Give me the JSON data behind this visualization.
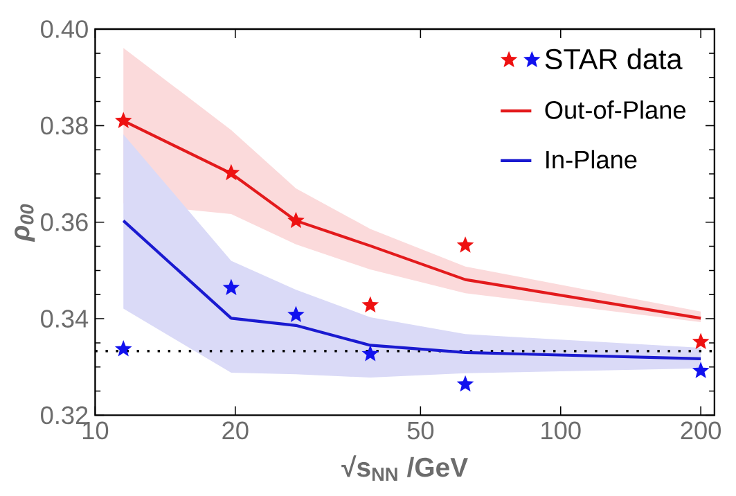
{
  "chart_data": {
    "type": "line",
    "xlabel": "√s$_{NN}$ /GeV",
    "ylabel": "ρ$_{00}$",
    "x": [
      11.5,
      19.6,
      27,
      39,
      62.4,
      200
    ],
    "series": [
      {
        "name": "STAR data",
        "type": "scatter",
        "marker": "star",
        "color": "#1111ee",
        "values": [
          0.3337,
          0.3464,
          0.3408,
          0.3327,
          0.3264,
          0.3292
        ]
      },
      {
        "type": "scatter",
        "marker": "star",
        "color": "#ee1111",
        "values": [
          0.381,
          0.3702,
          0.3603,
          0.3428,
          0.3552,
          0.3352
        ]
      },
      {
        "name": "Out-of-Plane",
        "color": "#e31a1c",
        "values": [
          0.381,
          0.3701,
          0.3603,
          0.3551,
          0.3481,
          0.3401
        ],
        "lower": [
          0.3639,
          0.3617,
          0.3554,
          0.3502,
          0.3453,
          0.3393
        ],
        "upper": [
          0.3961,
          0.3791,
          0.367,
          0.3586,
          0.3508,
          0.3415
        ]
      },
      {
        "name": "In-Plane",
        "color": "#1a1ad0",
        "values": [
          0.3603,
          0.3401,
          0.3386,
          0.3345,
          0.333,
          0.3317
        ],
        "lower": [
          0.3421,
          0.3288,
          0.3285,
          0.3278,
          0.3287,
          0.3297
        ],
        "upper": [
          0.3782,
          0.352,
          0.346,
          0.3403,
          0.3368,
          0.334
        ]
      }
    ],
    "log": "x",
    "xlim": [
      10,
      214
    ],
    "xticks": [
      10,
      20,
      50,
      100,
      200
    ],
    "ylim": [
      0.32,
      0.4
    ],
    "yticks": [
      0.32,
      0.34,
      0.36,
      0.38,
      {
        "value": 0.4,
        "label": "0.40"
      }
    ],
    "ref_lines": [
      {
        "axis": "y",
        "value": 0.3333,
        "color": "#000000",
        "line_style": "dotted"
      }
    ],
    "legend": "top right",
    "grid": false
  }
}
